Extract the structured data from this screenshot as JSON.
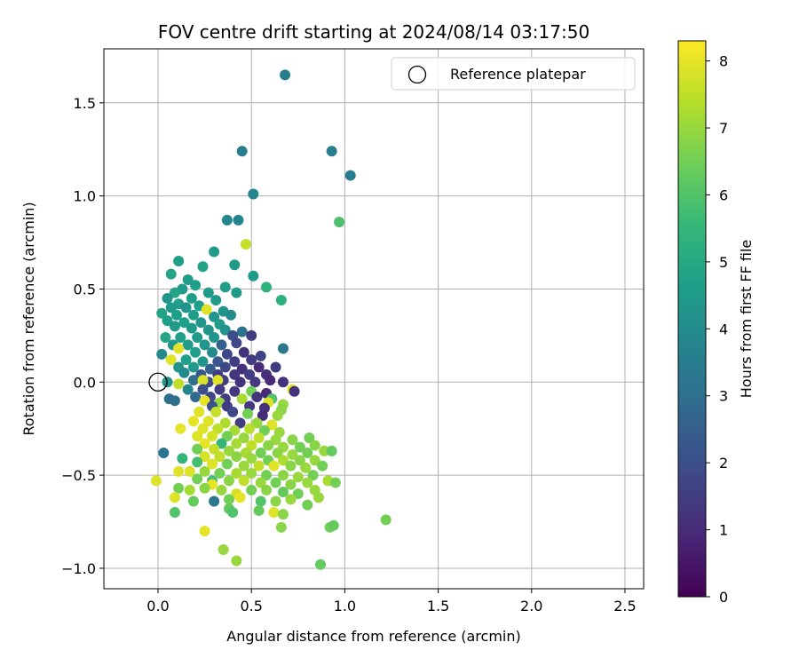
{
  "chart_data": {
    "type": "scatter",
    "title": "FOV centre drift starting at 2024/08/14 03:17:50",
    "xlabel": "Angular distance from reference (arcmin)",
    "ylabel": "Rotation from reference (arcmin)",
    "xlim": [
      -0.29,
      2.6
    ],
    "ylim": [
      -1.11,
      1.79
    ],
    "xticks": [
      0.0,
      0.5,
      1.0,
      1.5,
      2.0,
      2.5
    ],
    "xtick_labels": [
      "0.0",
      "0.5",
      "1.0",
      "1.5",
      "2.0",
      "2.5"
    ],
    "yticks": [
      -1.0,
      -0.5,
      0.0,
      0.5,
      1.0,
      1.5
    ],
    "ytick_labels": [
      "−1.0",
      "−0.5",
      "0.0",
      "0.5",
      "1.0",
      "1.5"
    ],
    "grid": true,
    "legend": {
      "placement": "top-right",
      "entries": [
        {
          "label": "Reference platepar",
          "marker": "open-circle"
        }
      ]
    },
    "reference_point": {
      "x": 0.0,
      "y": 0.0
    },
    "colorbar": {
      "label": "Hours from first FF file",
      "colormap": "viridis",
      "range": [
        0,
        8.3
      ],
      "ticks": [
        0,
        1,
        2,
        3,
        4,
        5,
        6,
        7,
        8
      ],
      "tick_labels": [
        "0",
        "1",
        "2",
        "3",
        "4",
        "5",
        "6",
        "7",
        "8"
      ]
    },
    "colormap_stops": [
      "#440154",
      "#482878",
      "#3e4989",
      "#31688e",
      "#26828e",
      "#1f9e89",
      "#35b779",
      "#6ece58",
      "#b5de2b",
      "#fde725"
    ],
    "points": [
      {
        "x": 0.68,
        "y": 1.65,
        "h": 3.5
      },
      {
        "x": 0.45,
        "y": 1.24,
        "h": 3.5
      },
      {
        "x": 0.93,
        "y": 1.24,
        "h": 3.5
      },
      {
        "x": 1.03,
        "y": 1.11,
        "h": 3.5
      },
      {
        "x": 0.51,
        "y": 1.01,
        "h": 3.8
      },
      {
        "x": 0.37,
        "y": 0.87,
        "h": 3.8
      },
      {
        "x": 0.43,
        "y": 0.87,
        "h": 3.8
      },
      {
        "x": 0.97,
        "y": 0.86,
        "h": 5.9
      },
      {
        "x": 0.47,
        "y": 0.74,
        "h": 7.6
      },
      {
        "x": 0.3,
        "y": 0.7,
        "h": 4.5
      },
      {
        "x": 0.11,
        "y": 0.65,
        "h": 4.6
      },
      {
        "x": 0.41,
        "y": 0.63,
        "h": 4.5
      },
      {
        "x": 0.24,
        "y": 0.62,
        "h": 4.8
      },
      {
        "x": 0.07,
        "y": 0.58,
        "h": 4.8
      },
      {
        "x": 0.51,
        "y": 0.57,
        "h": 4.5
      },
      {
        "x": 0.16,
        "y": 0.55,
        "h": 4.5
      },
      {
        "x": 0.2,
        "y": 0.52,
        "h": 4.6
      },
      {
        "x": 0.36,
        "y": 0.51,
        "h": 4.6
      },
      {
        "x": 0.58,
        "y": 0.51,
        "h": 5.3
      },
      {
        "x": 0.13,
        "y": 0.5,
        "h": 4.5
      },
      {
        "x": 0.09,
        "y": 0.48,
        "h": 4.8
      },
      {
        "x": 0.27,
        "y": 0.48,
        "h": 4.5
      },
      {
        "x": 0.42,
        "y": 0.48,
        "h": 4.5
      },
      {
        "x": 0.05,
        "y": 0.45,
        "h": 4.3
      },
      {
        "x": 0.18,
        "y": 0.45,
        "h": 4.6
      },
      {
        "x": 0.31,
        "y": 0.44,
        "h": 4.5
      },
      {
        "x": 0.66,
        "y": 0.44,
        "h": 5.3
      },
      {
        "x": 0.11,
        "y": 0.42,
        "h": 4.6
      },
      {
        "x": 0.22,
        "y": 0.41,
        "h": 4.6
      },
      {
        "x": 0.07,
        "y": 0.4,
        "h": 4.5
      },
      {
        "x": 0.15,
        "y": 0.4,
        "h": 4.3
      },
      {
        "x": 0.26,
        "y": 0.39,
        "h": 7.9
      },
      {
        "x": 0.35,
        "y": 0.38,
        "h": 4.3
      },
      {
        "x": 0.02,
        "y": 0.37,
        "h": 4.8
      },
      {
        "x": 0.1,
        "y": 0.36,
        "h": 4.6
      },
      {
        "x": 0.19,
        "y": 0.36,
        "h": 4.6
      },
      {
        "x": 0.3,
        "y": 0.35,
        "h": 4.3
      },
      {
        "x": 0.39,
        "y": 0.36,
        "h": 4.0
      },
      {
        "x": 0.05,
        "y": 0.33,
        "h": 4.6
      },
      {
        "x": 0.14,
        "y": 0.32,
        "h": 4.6
      },
      {
        "x": 0.23,
        "y": 0.32,
        "h": 4.3
      },
      {
        "x": 0.33,
        "y": 0.31,
        "h": 4.5
      },
      {
        "x": 0.09,
        "y": 0.3,
        "h": 4.5
      },
      {
        "x": 0.18,
        "y": 0.29,
        "h": 4.5
      },
      {
        "x": 0.27,
        "y": 0.28,
        "h": 4.3
      },
      {
        "x": 0.36,
        "y": 0.28,
        "h": 4.3
      },
      {
        "x": 0.45,
        "y": 0.27,
        "h": 3.2
      },
      {
        "x": 0.04,
        "y": 0.24,
        "h": 4.8
      },
      {
        "x": 0.12,
        "y": 0.24,
        "h": 4.6
      },
      {
        "x": 0.21,
        "y": 0.24,
        "h": 4.5
      },
      {
        "x": 0.3,
        "y": 0.24,
        "h": 4.3
      },
      {
        "x": 0.4,
        "y": 0.25,
        "h": 2.0
      },
      {
        "x": 0.5,
        "y": 0.25,
        "h": 1.5
      },
      {
        "x": 0.08,
        "y": 0.2,
        "h": 4.3
      },
      {
        "x": 0.16,
        "y": 0.2,
        "h": 4.5
      },
      {
        "x": 0.25,
        "y": 0.2,
        "h": 4.3
      },
      {
        "x": 0.34,
        "y": 0.2,
        "h": 2.5
      },
      {
        "x": 0.42,
        "y": 0.21,
        "h": 1.8
      },
      {
        "x": 0.67,
        "y": 0.18,
        "h": 3.3
      },
      {
        "x": 0.11,
        "y": 0.18,
        "h": 7.9
      },
      {
        "x": 0.02,
        "y": 0.15,
        "h": 4.0
      },
      {
        "x": 0.2,
        "y": 0.16,
        "h": 4.6
      },
      {
        "x": 0.29,
        "y": 0.16,
        "h": 4.0
      },
      {
        "x": 0.37,
        "y": 0.15,
        "h": 1.8
      },
      {
        "x": 0.46,
        "y": 0.16,
        "h": 1.2
      },
      {
        "x": 0.55,
        "y": 0.14,
        "h": 1.7
      },
      {
        "x": 0.07,
        "y": 0.12,
        "h": 7.9
      },
      {
        "x": 0.15,
        "y": 0.12,
        "h": 4.6
      },
      {
        "x": 0.24,
        "y": 0.11,
        "h": 4.3
      },
      {
        "x": 0.32,
        "y": 0.11,
        "h": 2.3
      },
      {
        "x": 0.41,
        "y": 0.11,
        "h": 1.5
      },
      {
        "x": 0.5,
        "y": 0.12,
        "h": 1.5
      },
      {
        "x": 0.11,
        "y": 0.08,
        "h": 4.3
      },
      {
        "x": 0.19,
        "y": 0.08,
        "h": 4.5
      },
      {
        "x": 0.28,
        "y": 0.07,
        "h": 2.5
      },
      {
        "x": 0.36,
        "y": 0.08,
        "h": 1.8
      },
      {
        "x": 0.45,
        "y": 0.07,
        "h": 1.2
      },
      {
        "x": 0.54,
        "y": 0.08,
        "h": 1.0
      },
      {
        "x": 0.63,
        "y": 0.08,
        "h": 1.5
      },
      {
        "x": 0.14,
        "y": 0.05,
        "h": 4.0
      },
      {
        "x": 0.23,
        "y": 0.04,
        "h": 2.2
      },
      {
        "x": 0.32,
        "y": 0.04,
        "h": 1.5
      },
      {
        "x": 0.41,
        "y": 0.04,
        "h": 1.3
      },
      {
        "x": 0.49,
        "y": 0.04,
        "h": 1.5
      },
      {
        "x": 0.58,
        "y": 0.04,
        "h": 1.2
      },
      {
        "x": 0.05,
        "y": 0.0,
        "h": 4.2
      },
      {
        "x": 0.11,
        "y": -0.01,
        "h": 7.5
      },
      {
        "x": 0.19,
        "y": 0.01,
        "h": 3.0
      },
      {
        "x": 0.27,
        "y": 0.0,
        "h": 1.8
      },
      {
        "x": 0.35,
        "y": 0.01,
        "h": 1.5
      },
      {
        "x": 0.44,
        "y": 0.0,
        "h": 1.2
      },
      {
        "x": 0.52,
        "y": 0.0,
        "h": 1.4
      },
      {
        "x": 0.6,
        "y": 0.01,
        "h": 1.0
      },
      {
        "x": 0.67,
        "y": 0.0,
        "h": 1.2
      },
      {
        "x": 0.24,
        "y": 0.01,
        "h": 7.8
      },
      {
        "x": 0.32,
        "y": 0.01,
        "h": 7.9
      },
      {
        "x": 0.72,
        "y": -0.04,
        "h": 8.0
      },
      {
        "x": 0.73,
        "y": -0.05,
        "h": 1.2
      },
      {
        "x": 0.16,
        "y": -0.04,
        "h": 3.8
      },
      {
        "x": 0.24,
        "y": -0.04,
        "h": 2.0
      },
      {
        "x": 0.33,
        "y": -0.04,
        "h": 1.5
      },
      {
        "x": 0.41,
        "y": -0.05,
        "h": 1.3
      },
      {
        "x": 0.5,
        "y": -0.05,
        "h": 6.5
      },
      {
        "x": 0.58,
        "y": -0.06,
        "h": 1.0
      },
      {
        "x": 0.06,
        "y": -0.09,
        "h": 3.0
      },
      {
        "x": 0.09,
        "y": -0.1,
        "h": 3.0
      },
      {
        "x": 0.2,
        "y": -0.08,
        "h": 2.8
      },
      {
        "x": 0.28,
        "y": -0.08,
        "h": 1.8
      },
      {
        "x": 0.36,
        "y": -0.09,
        "h": 1.5
      },
      {
        "x": 0.45,
        "y": -0.09,
        "h": 7.2
      },
      {
        "x": 0.53,
        "y": -0.08,
        "h": 1.2
      },
      {
        "x": 0.61,
        "y": -0.09,
        "h": 6.0
      },
      {
        "x": 0.25,
        "y": -0.1,
        "h": 8.0
      },
      {
        "x": 0.33,
        "y": -0.11,
        "h": 7.0
      },
      {
        "x": 0.59,
        "y": -0.11,
        "h": 7.9
      },
      {
        "x": 0.67,
        "y": -0.12,
        "h": 7.0
      },
      {
        "x": 0.29,
        "y": -0.13,
        "h": 2.0
      },
      {
        "x": 0.37,
        "y": -0.13,
        "h": 1.5
      },
      {
        "x": 0.49,
        "y": -0.13,
        "h": 1.3
      },
      {
        "x": 0.57,
        "y": -0.14,
        "h": 1.2
      },
      {
        "x": 0.66,
        "y": -0.15,
        "h": 6.8
      },
      {
        "x": 0.22,
        "y": -0.16,
        "h": 7.9
      },
      {
        "x": 0.31,
        "y": -0.16,
        "h": 7.6
      },
      {
        "x": 0.4,
        "y": -0.16,
        "h": 1.8
      },
      {
        "x": 0.48,
        "y": -0.17,
        "h": 6.5
      },
      {
        "x": 0.56,
        "y": -0.18,
        "h": 1.0
      },
      {
        "x": 0.64,
        "y": -0.18,
        "h": 7.0
      },
      {
        "x": 0.19,
        "y": -0.21,
        "h": 8.0
      },
      {
        "x": 0.27,
        "y": -0.21,
        "h": 7.9
      },
      {
        "x": 0.36,
        "y": -0.22,
        "h": 7.3
      },
      {
        "x": 0.44,
        "y": -0.22,
        "h": 1.5
      },
      {
        "x": 0.53,
        "y": -0.22,
        "h": 7.0
      },
      {
        "x": 0.61,
        "y": -0.23,
        "h": 7.9
      },
      {
        "x": 0.24,
        "y": -0.25,
        "h": 7.9
      },
      {
        "x": 0.32,
        "y": -0.25,
        "h": 7.5
      },
      {
        "x": 0.41,
        "y": -0.26,
        "h": 7.2
      },
      {
        "x": 0.49,
        "y": -0.25,
        "h": 7.4
      },
      {
        "x": 0.57,
        "y": -0.26,
        "h": 6.5
      },
      {
        "x": 0.65,
        "y": -0.27,
        "h": 7.0
      },
      {
        "x": 0.12,
        "y": -0.25,
        "h": 8.0
      },
      {
        "x": 0.21,
        "y": -0.29,
        "h": 7.9
      },
      {
        "x": 0.29,
        "y": -0.29,
        "h": 7.8
      },
      {
        "x": 0.37,
        "y": -0.29,
        "h": 6.5
      },
      {
        "x": 0.46,
        "y": -0.3,
        "h": 7.0
      },
      {
        "x": 0.54,
        "y": -0.3,
        "h": 7.5
      },
      {
        "x": 0.63,
        "y": -0.31,
        "h": 7.0
      },
      {
        "x": 0.72,
        "y": -0.31,
        "h": 6.8
      },
      {
        "x": 0.81,
        "y": -0.3,
        "h": 6.5
      },
      {
        "x": 0.25,
        "y": -0.33,
        "h": 8.0
      },
      {
        "x": 0.34,
        "y": -0.33,
        "h": 5.5
      },
      {
        "x": 0.42,
        "y": -0.33,
        "h": 7.2
      },
      {
        "x": 0.5,
        "y": -0.34,
        "h": 7.5
      },
      {
        "x": 0.59,
        "y": -0.34,
        "h": 6.8
      },
      {
        "x": 0.67,
        "y": -0.35,
        "h": 7.0
      },
      {
        "x": 0.76,
        "y": -0.35,
        "h": 6.5
      },
      {
        "x": 0.84,
        "y": -0.34,
        "h": 6.8
      },
      {
        "x": 0.21,
        "y": -0.36,
        "h": 6.5
      },
      {
        "x": 0.3,
        "y": -0.36,
        "h": 7.6
      },
      {
        "x": 0.38,
        "y": -0.37,
        "h": 7.0
      },
      {
        "x": 0.47,
        "y": -0.38,
        "h": 7.2
      },
      {
        "x": 0.55,
        "y": -0.38,
        "h": 6.5
      },
      {
        "x": 0.64,
        "y": -0.38,
        "h": 6.8
      },
      {
        "x": 0.72,
        "y": -0.39,
        "h": 7.0
      },
      {
        "x": 0.8,
        "y": -0.38,
        "h": 6.5
      },
      {
        "x": 0.89,
        "y": -0.37,
        "h": 7.0
      },
      {
        "x": 0.93,
        "y": -0.37,
        "h": 6.3
      },
      {
        "x": 0.25,
        "y": -0.4,
        "h": 7.8
      },
      {
        "x": 0.33,
        "y": -0.4,
        "h": 7.5
      },
      {
        "x": 0.42,
        "y": -0.4,
        "h": 6.8
      },
      {
        "x": 0.5,
        "y": -0.41,
        "h": 7.0
      },
      {
        "x": 0.59,
        "y": -0.42,
        "h": 6.5
      },
      {
        "x": 0.67,
        "y": -0.42,
        "h": 7.3
      },
      {
        "x": 0.76,
        "y": -0.42,
        "h": 6.8
      },
      {
        "x": 0.84,
        "y": -0.42,
        "h": 7.0
      },
      {
        "x": 0.13,
        "y": -0.41,
        "h": 5.5
      },
      {
        "x": 0.21,
        "y": -0.43,
        "h": 5.8
      },
      {
        "x": 0.29,
        "y": -0.44,
        "h": 7.9
      },
      {
        "x": 0.37,
        "y": -0.44,
        "h": 6.5
      },
      {
        "x": 0.46,
        "y": -0.45,
        "h": 7.0
      },
      {
        "x": 0.54,
        "y": -0.45,
        "h": 7.5
      },
      {
        "x": 0.62,
        "y": -0.45,
        "h": 7.9
      },
      {
        "x": 0.71,
        "y": -0.45,
        "h": 6.8
      },
      {
        "x": 0.79,
        "y": -0.46,
        "h": 7.0
      },
      {
        "x": 0.88,
        "y": -0.45,
        "h": 6.5
      },
      {
        "x": 0.03,
        "y": -0.38,
        "h": 3.2
      },
      {
        "x": 0.17,
        "y": -0.48,
        "h": 7.9
      },
      {
        "x": 0.25,
        "y": -0.48,
        "h": 7.0
      },
      {
        "x": 0.33,
        "y": -0.49,
        "h": 6.5
      },
      {
        "x": 0.42,
        "y": -0.49,
        "h": 7.2
      },
      {
        "x": 0.5,
        "y": -0.49,
        "h": 7.0
      },
      {
        "x": 0.58,
        "y": -0.5,
        "h": 6.5
      },
      {
        "x": 0.67,
        "y": -0.5,
        "h": 6.8
      },
      {
        "x": 0.75,
        "y": -0.51,
        "h": 7.0
      },
      {
        "x": 0.83,
        "y": -0.5,
        "h": 6.5
      },
      {
        "x": 0.11,
        "y": -0.48,
        "h": 7.9
      },
      {
        "x": 0.21,
        "y": -0.52,
        "h": 6.5
      },
      {
        "x": 0.29,
        "y": -0.53,
        "h": 5.8
      },
      {
        "x": 0.38,
        "y": -0.53,
        "h": 6.8
      },
      {
        "x": 0.46,
        "y": -0.53,
        "h": 7.5
      },
      {
        "x": 0.55,
        "y": -0.54,
        "h": 7.0
      },
      {
        "x": 0.63,
        "y": -0.54,
        "h": 6.5
      },
      {
        "x": 0.71,
        "y": -0.55,
        "h": 6.8
      },
      {
        "x": 0.8,
        "y": -0.54,
        "h": 7.0
      },
      {
        "x": 0.91,
        "y": -0.53,
        "h": 7.2
      },
      {
        "x": 0.95,
        "y": -0.54,
        "h": 6.5
      },
      {
        "x": -0.01,
        "y": -0.53,
        "h": 7.9
      },
      {
        "x": 0.29,
        "y": -0.55,
        "h": 8.0
      },
      {
        "x": 0.11,
        "y": -0.57,
        "h": 6.5
      },
      {
        "x": 0.17,
        "y": -0.58,
        "h": 7.2
      },
      {
        "x": 0.25,
        "y": -0.57,
        "h": 6.8
      },
      {
        "x": 0.34,
        "y": -0.58,
        "h": 7.0
      },
      {
        "x": 0.42,
        "y": -0.6,
        "h": 7.8
      },
      {
        "x": 0.5,
        "y": -0.58,
        "h": 6.5
      },
      {
        "x": 0.58,
        "y": -0.58,
        "h": 6.8
      },
      {
        "x": 0.67,
        "y": -0.59,
        "h": 6.3
      },
      {
        "x": 0.75,
        "y": -0.6,
        "h": 6.5
      },
      {
        "x": 0.84,
        "y": -0.58,
        "h": 7.0
      },
      {
        "x": 0.09,
        "y": -0.62,
        "h": 7.9
      },
      {
        "x": 0.44,
        "y": -0.62,
        "h": 8.0
      },
      {
        "x": 0.19,
        "y": -0.64,
        "h": 6.3
      },
      {
        "x": 0.3,
        "y": -0.64,
        "h": 3.3
      },
      {
        "x": 0.38,
        "y": -0.63,
        "h": 6.5
      },
      {
        "x": 0.55,
        "y": -0.64,
        "h": 6.0
      },
      {
        "x": 0.63,
        "y": -0.64,
        "h": 6.8
      },
      {
        "x": 0.71,
        "y": -0.63,
        "h": 7.0
      },
      {
        "x": 0.8,
        "y": -0.66,
        "h": 6.5
      },
      {
        "x": 0.86,
        "y": -0.62,
        "h": 7.0
      },
      {
        "x": 0.09,
        "y": -0.7,
        "h": 6.0
      },
      {
        "x": 0.38,
        "y": -0.68,
        "h": 6.3
      },
      {
        "x": 0.4,
        "y": -0.7,
        "h": 6.0
      },
      {
        "x": 0.54,
        "y": -0.69,
        "h": 6.3
      },
      {
        "x": 0.62,
        "y": -0.7,
        "h": 7.9
      },
      {
        "x": 0.67,
        "y": -0.71,
        "h": 6.8
      },
      {
        "x": 1.22,
        "y": -0.74,
        "h": 6.5
      },
      {
        "x": 0.66,
        "y": -0.78,
        "h": 6.8
      },
      {
        "x": 0.92,
        "y": -0.78,
        "h": 6.5
      },
      {
        "x": 0.94,
        "y": -0.77,
        "h": 6.3
      },
      {
        "x": 0.25,
        "y": -0.8,
        "h": 8.0
      },
      {
        "x": 0.35,
        "y": -0.9,
        "h": 7.0
      },
      {
        "x": 0.42,
        "y": -0.96,
        "h": 7.0
      },
      {
        "x": 0.87,
        "y": -0.98,
        "h": 6.3
      }
    ]
  }
}
